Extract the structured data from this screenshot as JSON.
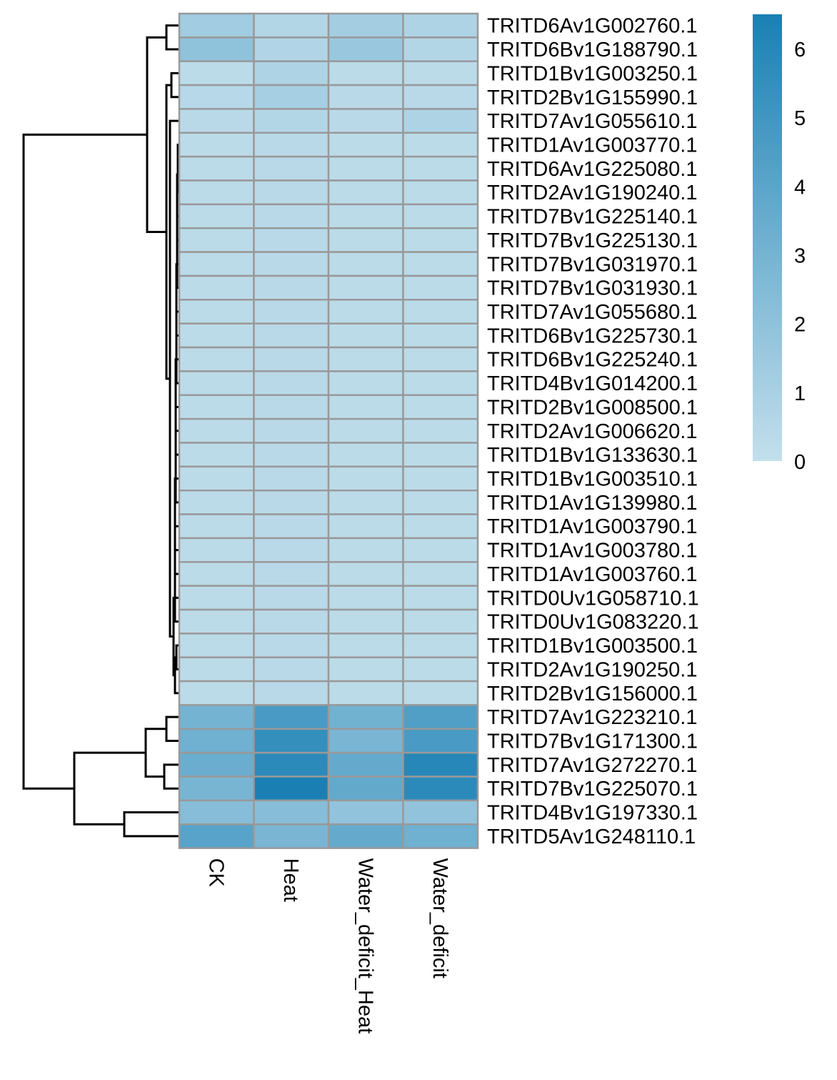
{
  "chart_data": {
    "type": "heatmap",
    "columns": [
      "CK",
      "Heat",
      "Water_deficit_Heat",
      "Water_deficit"
    ],
    "rows": [
      "TRITD6Av1G002760.1",
      "TRITD6Bv1G188790.1",
      "TRITD1Bv1G003250.1",
      "TRITD2Bv1G155990.1",
      "TRITD7Av1G055610.1",
      "TRITD1Av1G003770.1",
      "TRITD6Av1G225080.1",
      "TRITD2Av1G190240.1",
      "TRITD7Bv1G225140.1",
      "TRITD7Bv1G225130.1",
      "TRITD7Bv1G031970.1",
      "TRITD7Bv1G031930.1",
      "TRITD7Av1G055680.1",
      "TRITD6Bv1G225730.1",
      "TRITD6Bv1G225240.1",
      "TRITD4Bv1G014200.1",
      "TRITD2Bv1G008500.1",
      "TRITD2Av1G006620.1",
      "TRITD1Bv1G133630.1",
      "TRITD1Bv1G003510.1",
      "TRITD1Av1G139980.1",
      "TRITD1Av1G003790.1",
      "TRITD1Av1G003780.1",
      "TRITD1Av1G003760.1",
      "TRITD0Uv1G058710.1",
      "TRITD0Uv1G083220.1",
      "TRITD1Bv1G003500.1",
      "TRITD2Av1G190250.1",
      "TRITD2Bv1G156000.1",
      "TRITD7Av1G223210.1",
      "TRITD7Bv1G171300.1",
      "TRITD7Av1G272270.1",
      "TRITD7Bv1G225070.1",
      "TRITD4Bv1G197330.1",
      "TRITD5Av1G248110.1"
    ],
    "values": [
      [
        1.3,
        0.6,
        1.2,
        0.8
      ],
      [
        2.0,
        0.7,
        1.6,
        0.6
      ],
      [
        0.3,
        0.8,
        0.3,
        0.3
      ],
      [
        0.5,
        1.1,
        0.4,
        0.4
      ],
      [
        0.4,
        0.6,
        0.4,
        0.8
      ],
      [
        0.3,
        0.4,
        0.3,
        0.3
      ],
      [
        0.3,
        0.4,
        0.3,
        0.3
      ],
      [
        0.3,
        0.4,
        0.3,
        0.3
      ],
      [
        0.3,
        0.4,
        0.3,
        0.3
      ],
      [
        0.3,
        0.4,
        0.3,
        0.3
      ],
      [
        0.3,
        0.4,
        0.3,
        0.3
      ],
      [
        0.3,
        0.4,
        0.3,
        0.3
      ],
      [
        0.3,
        0.4,
        0.3,
        0.3
      ],
      [
        0.3,
        0.4,
        0.3,
        0.3
      ],
      [
        0.3,
        0.4,
        0.3,
        0.3
      ],
      [
        0.3,
        0.4,
        0.3,
        0.3
      ],
      [
        0.3,
        0.4,
        0.3,
        0.3
      ],
      [
        0.3,
        0.4,
        0.3,
        0.3
      ],
      [
        0.3,
        0.4,
        0.3,
        0.3
      ],
      [
        0.3,
        0.4,
        0.3,
        0.3
      ],
      [
        0.3,
        0.4,
        0.3,
        0.3
      ],
      [
        0.3,
        0.4,
        0.3,
        0.3
      ],
      [
        0.3,
        0.4,
        0.3,
        0.3
      ],
      [
        0.3,
        0.4,
        0.3,
        0.3
      ],
      [
        0.3,
        0.4,
        0.3,
        0.3
      ],
      [
        0.3,
        0.4,
        0.3,
        0.3
      ],
      [
        0.3,
        0.4,
        0.3,
        0.3
      ],
      [
        0.3,
        0.4,
        0.3,
        0.3
      ],
      [
        0.3,
        0.4,
        0.3,
        0.3
      ],
      [
        3.0,
        4.7,
        3.1,
        4.4
      ],
      [
        3.2,
        5.5,
        2.8,
        4.7
      ],
      [
        3.4,
        5.8,
        3.6,
        6.0
      ],
      [
        2.9,
        6.5,
        3.7,
        5.8
      ],
      [
        2.3,
        2.3,
        1.9,
        1.9
      ],
      [
        4.1,
        2.8,
        3.6,
        3.2
      ]
    ],
    "legend": {
      "ticks": [
        0,
        1,
        2,
        3,
        4,
        5,
        6
      ],
      "range": [
        0,
        6.5
      ],
      "colors": [
        "#c3dfec",
        "#1a80b4"
      ]
    },
    "row_dendrogram": true,
    "grid": true
  }
}
